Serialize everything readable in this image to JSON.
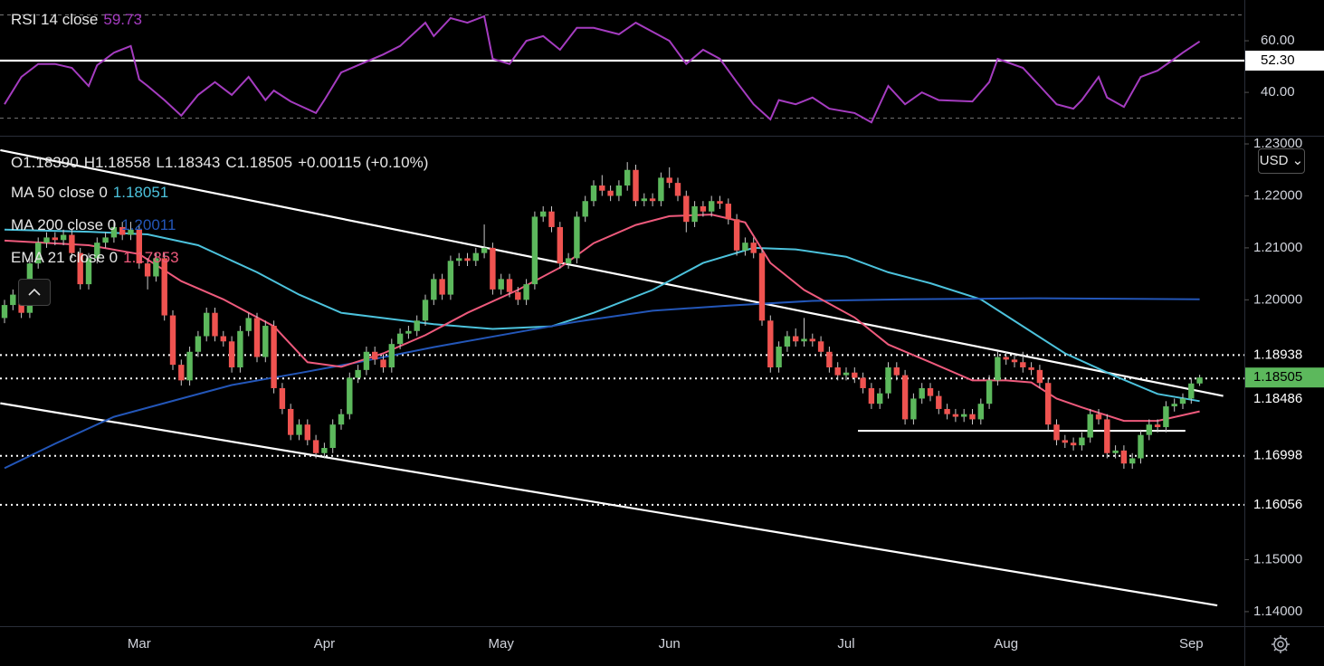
{
  "chart_data": [
    {
      "type": "candlestick",
      "header": {
        "ohlc": [
          "O1.18390",
          "H1.18558",
          "L1.18343",
          "C1.18505"
        ],
        "change": "+0.00115 (+0.10%)"
      },
      "currency": "USD",
      "categories": [
        null,
        null,
        null,
        null,
        null,
        null,
        null,
        null,
        null,
        null,
        null,
        null,
        null,
        null,
        null,
        null,
        "Mar",
        null,
        null,
        null,
        null,
        null,
        null,
        null,
        null,
        null,
        null,
        null,
        null,
        null,
        null,
        null,
        null,
        null,
        null,
        null,
        null,
        null,
        "Apr",
        null,
        null,
        null,
        null,
        null,
        null,
        null,
        null,
        null,
        null,
        null,
        null,
        null,
        null,
        null,
        null,
        null,
        null,
        null,
        null,
        "May",
        null,
        null,
        null,
        null,
        null,
        null,
        null,
        null,
        null,
        null,
        null,
        null,
        null,
        null,
        null,
        null,
        null,
        null,
        null,
        "Jun",
        null,
        null,
        null,
        null,
        null,
        null,
        null,
        null,
        null,
        null,
        null,
        null,
        null,
        null,
        null,
        null,
        null,
        null,
        null,
        null,
        "Jul",
        null,
        null,
        null,
        null,
        null,
        null,
        null,
        null,
        null,
        null,
        null,
        null,
        null,
        null,
        null,
        null,
        null,
        null,
        "Aug",
        null,
        null,
        null,
        null,
        null,
        null,
        null,
        null,
        null,
        null,
        null,
        null,
        null,
        null,
        null,
        null,
        null,
        null,
        null,
        null,
        null,
        "Sep",
        null
      ],
      "open": [
        1.1965,
        1.199,
        1.201,
        1.1975,
        1.207,
        1.211,
        1.212,
        1.2115,
        1.2125,
        1.209,
        1.203,
        1.208,
        1.211,
        1.212,
        1.214,
        1.2125,
        1.2135,
        1.207,
        1.2045,
        1.208,
        1.197,
        1.1875,
        1.1845,
        1.19,
        1.193,
        1.1975,
        1.193,
        1.192,
        1.187,
        1.194,
        1.1965,
        1.189,
        1.195,
        1.183,
        1.179,
        1.174,
        1.176,
        1.173,
        1.1705,
        1.1715,
        1.176,
        1.178,
        1.185,
        1.1865,
        1.19,
        1.1885,
        1.187,
        1.1915,
        1.1935,
        1.194,
        1.196,
        1.2,
        1.204,
        1.201,
        1.2075,
        1.208,
        1.2075,
        1.209,
        1.21,
        1.202,
        1.204,
        1.2015,
        1.2,
        1.203,
        1.216,
        1.217,
        1.214,
        1.207,
        1.208,
        1.216,
        1.219,
        1.222,
        1.221,
        1.22,
        1.222,
        1.225,
        1.219,
        1.2195,
        1.219,
        1.2235,
        1.2225,
        1.22,
        1.215,
        1.218,
        1.217,
        1.219,
        1.2185,
        1.2155,
        1.2095,
        1.211,
        1.209,
        1.196,
        1.187,
        1.191,
        1.193,
        1.192,
        1.1925,
        1.192,
        1.19,
        1.187,
        1.1855,
        1.186,
        1.185,
        1.183,
        1.18,
        1.182,
        1.187,
        1.1855,
        1.177,
        1.181,
        1.183,
        1.1815,
        1.179,
        1.178,
        1.1775,
        1.178,
        1.177,
        1.18,
        1.1845,
        1.189,
        1.1885,
        1.188,
        1.187,
        1.1865,
        1.184,
        1.176,
        1.173,
        1.1725,
        1.172,
        1.1735,
        1.178,
        1.177,
        1.1705,
        1.171,
        1.1685,
        1.1695,
        1.174,
        1.176,
        1.1755,
        1.1795,
        1.18,
        1.181,
        1.1839
      ],
      "high": [
        1.2,
        1.202,
        1.202,
        1.208,
        1.212,
        1.213,
        1.213,
        1.2135,
        1.2135,
        1.21,
        1.209,
        1.212,
        1.213,
        1.215,
        1.215,
        1.215,
        1.2145,
        1.208,
        1.209,
        1.209,
        1.198,
        1.1885,
        1.191,
        1.194,
        1.1985,
        1.1985,
        1.194,
        1.193,
        1.195,
        1.1975,
        1.1975,
        1.196,
        1.196,
        1.184,
        1.18,
        1.177,
        1.177,
        1.174,
        1.1725,
        1.177,
        1.179,
        1.186,
        1.1875,
        1.191,
        1.191,
        1.1895,
        1.1925,
        1.1945,
        1.195,
        1.197,
        1.201,
        1.205,
        1.205,
        1.2085,
        1.209,
        1.209,
        1.21,
        1.2145,
        1.211,
        1.205,
        1.205,
        1.2025,
        1.204,
        1.217,
        1.218,
        1.218,
        1.215,
        1.209,
        1.217,
        1.22,
        1.223,
        1.224,
        1.222,
        1.223,
        1.2265,
        1.226,
        1.2205,
        1.2205,
        1.2245,
        1.2255,
        1.2235,
        1.221,
        1.219,
        1.219,
        1.22,
        1.22,
        1.2195,
        1.2165,
        1.212,
        1.212,
        1.21,
        1.197,
        1.192,
        1.194,
        1.1945,
        1.1965,
        1.1935,
        1.193,
        1.191,
        1.188,
        1.187,
        1.187,
        1.186,
        1.184,
        1.183,
        1.188,
        1.188,
        1.1865,
        1.182,
        1.184,
        1.184,
        1.1825,
        1.18,
        1.179,
        1.179,
        1.179,
        1.181,
        1.1855,
        1.19,
        1.19,
        1.1895,
        1.19,
        1.188,
        1.1875,
        1.185,
        1.177,
        1.174,
        1.1735,
        1.1745,
        1.179,
        1.179,
        1.178,
        1.172,
        1.172,
        1.1705,
        1.175,
        1.177,
        1.177,
        1.1805,
        1.181,
        1.182,
        1.185,
        1.18558
      ],
      "low": [
        1.1955,
        1.198,
        1.1965,
        1.1965,
        1.206,
        1.21,
        1.2105,
        1.2105,
        1.208,
        1.202,
        1.202,
        1.207,
        1.21,
        1.211,
        1.2115,
        1.2115,
        1.206,
        1.202,
        1.2035,
        1.196,
        1.1865,
        1.1835,
        1.1835,
        1.189,
        1.192,
        1.192,
        1.191,
        1.186,
        1.186,
        1.193,
        1.188,
        1.188,
        1.182,
        1.178,
        1.173,
        1.173,
        1.172,
        1.1695,
        1.1695,
        1.1705,
        1.175,
        1.177,
        1.184,
        1.1855,
        1.1875,
        1.186,
        1.186,
        1.1905,
        1.1925,
        1.193,
        1.195,
        1.199,
        1.2,
        1.2,
        1.2065,
        1.2065,
        1.2065,
        1.208,
        1.201,
        1.201,
        1.2005,
        1.199,
        1.199,
        1.202,
        1.215,
        1.213,
        1.206,
        1.206,
        1.207,
        1.215,
        1.218,
        1.22,
        1.219,
        1.219,
        1.221,
        1.218,
        1.218,
        1.218,
        1.218,
        1.2215,
        1.219,
        1.213,
        1.214,
        1.216,
        1.216,
        1.2175,
        1.2145,
        1.2085,
        1.2085,
        1.208,
        1.195,
        1.186,
        1.186,
        1.19,
        1.191,
        1.191,
        1.191,
        1.189,
        1.186,
        1.1845,
        1.1845,
        1.184,
        1.182,
        1.179,
        1.179,
        1.181,
        1.1845,
        1.176,
        1.176,
        1.18,
        1.1805,
        1.178,
        1.177,
        1.1765,
        1.1765,
        1.176,
        1.176,
        1.179,
        1.1835,
        1.1875,
        1.187,
        1.186,
        1.1855,
        1.183,
        1.175,
        1.172,
        1.1715,
        1.171,
        1.171,
        1.1725,
        1.176,
        1.1695,
        1.1695,
        1.1675,
        1.1675,
        1.1685,
        1.173,
        1.1745,
        1.1745,
        1.1785,
        1.179,
        1.18,
        1.18343
      ],
      "close": [
        1.199,
        1.201,
        1.1975,
        1.207,
        1.211,
        1.212,
        1.2115,
        1.2125,
        1.209,
        1.203,
        1.208,
        1.211,
        1.212,
        1.214,
        1.2125,
        1.2135,
        1.207,
        1.2045,
        1.208,
        1.197,
        1.1875,
        1.1845,
        1.19,
        1.193,
        1.1975,
        1.193,
        1.192,
        1.187,
        1.194,
        1.1965,
        1.189,
        1.195,
        1.183,
        1.179,
        1.174,
        1.176,
        1.173,
        1.1705,
        1.1715,
        1.176,
        1.178,
        1.185,
        1.1865,
        1.19,
        1.1885,
        1.187,
        1.1915,
        1.1935,
        1.194,
        1.196,
        1.2,
        1.204,
        1.201,
        1.2075,
        1.208,
        1.2075,
        1.209,
        1.21,
        1.202,
        1.204,
        1.2015,
        1.2,
        1.203,
        1.216,
        1.217,
        1.214,
        1.207,
        1.208,
        1.216,
        1.219,
        1.222,
        1.221,
        1.22,
        1.222,
        1.225,
        1.219,
        1.2195,
        1.219,
        1.2235,
        1.2225,
        1.22,
        1.215,
        1.218,
        1.217,
        1.219,
        1.2185,
        1.2155,
        1.2095,
        1.211,
        1.209,
        1.196,
        1.187,
        1.191,
        1.193,
        1.192,
        1.1925,
        1.192,
        1.19,
        1.187,
        1.1855,
        1.186,
        1.185,
        1.183,
        1.18,
        1.182,
        1.187,
        1.1855,
        1.177,
        1.181,
        1.183,
        1.1815,
        1.179,
        1.178,
        1.1775,
        1.178,
        1.177,
        1.18,
        1.1845,
        1.189,
        1.1885,
        1.188,
        1.187,
        1.1865,
        1.184,
        1.176,
        1.173,
        1.1725,
        1.172,
        1.1735,
        1.178,
        1.177,
        1.1705,
        1.171,
        1.1685,
        1.1695,
        1.174,
        1.176,
        1.1755,
        1.1795,
        1.18,
        1.181,
        1.1839,
        1.18505
      ],
      "up_color": "#5cb85c",
      "down_color": "#ef5350",
      "wick_color": "#c8c8c8",
      "overlays": [
        {
          "name": "MA 50 close 0",
          "legend_value": "1.18051",
          "color": "#4cc2dc",
          "x": [
            0,
            10,
            17,
            23,
            30,
            35,
            40,
            46,
            51,
            58,
            65,
            70,
            77,
            83,
            89,
            94,
            100,
            105,
            110,
            116,
            121,
            126,
            132,
            137,
            142
          ],
          "values": [
            1.2135,
            1.2131,
            1.2126,
            1.2105,
            1.2053,
            1.201,
            1.1975,
            1.1963,
            1.1953,
            1.1944,
            1.1949,
            1.1975,
            1.2019,
            1.2071,
            1.21,
            1.2097,
            1.2083,
            1.2053,
            1.2032,
            1.2001,
            1.1949,
            1.1897,
            1.1853,
            1.1819,
            1.18051
          ]
        },
        {
          "name": "MA 200 close 0",
          "legend_value": "1.20011",
          "color": "#2356b8",
          "x": [
            0,
            6,
            13,
            21,
            27,
            35,
            42,
            51,
            60,
            68,
            77,
            86,
            96,
            107,
            123,
            142
          ],
          "values": [
            1.1676,
            1.1723,
            1.1775,
            1.181,
            1.1836,
            1.1859,
            1.188,
            1.1909,
            1.1935,
            1.1958,
            1.1979,
            1.1989,
            1.1998,
            1.2001,
            1.2003,
            1.20011
          ]
        },
        {
          "name": "EMA 21 close 0",
          "legend_value": "1.17853",
          "color": "#ee5a7c",
          "x": [
            0,
            10,
            16,
            21,
            26,
            32,
            36,
            40,
            45,
            50,
            55,
            61,
            66,
            70,
            75,
            79,
            84,
            88,
            91,
            95,
            101,
            105,
            110,
            115,
            119,
            122,
            125,
            128,
            133,
            137,
            142
          ],
          "values": [
            1.2114,
            1.2105,
            1.2088,
            1.2036,
            1.2001,
            1.1949,
            1.188,
            1.1871,
            1.1897,
            1.1932,
            1.1975,
            1.2019,
            1.2062,
            1.2109,
            1.2144,
            1.2161,
            1.2164,
            1.2149,
            1.2071,
            1.2019,
            1.1966,
            1.1914,
            1.188,
            1.1845,
            1.1845,
            1.1841,
            1.181,
            1.1793,
            1.1767,
            1.1767,
            1.17853
          ]
        }
      ],
      "levels": [
        1.18938,
        1.18486,
        1.16998,
        1.16056
      ],
      "trendlines": [
        {
          "x": [
            -0.5,
            144.8
          ],
          "values": [
            1.2288,
            1.1815
          ]
        },
        {
          "x": [
            -0.5,
            144.1
          ],
          "values": [
            1.1801,
            1.1412
          ]
        },
        {
          "x": [
            101.4,
            140.3
          ],
          "values": [
            1.1748,
            1.1748
          ]
        }
      ],
      "ylim": [
        1.1372,
        1.2314
      ],
      "yticks": [
        {
          "value": 1.23,
          "label": "1.23000"
        },
        {
          "value": 1.22,
          "label": "1.22000"
        },
        {
          "value": 1.21,
          "label": "1.21000"
        },
        {
          "value": 1.2,
          "label": "1.20000"
        },
        {
          "value": 1.15,
          "label": "1.15000"
        },
        {
          "value": 1.14,
          "label": "1.14000"
        }
      ]
    },
    {
      "type": "line",
      "title": "RSI 14 close",
      "legend_value": "59.73",
      "color": "#a53cc0",
      "x": [
        0,
        2,
        4,
        6,
        8,
        10,
        11,
        13,
        15,
        16,
        17,
        19,
        21,
        23,
        25,
        27,
        29,
        31,
        32,
        34,
        37,
        38,
        40,
        42,
        45,
        47,
        50,
        51,
        53,
        55,
        57,
        58,
        60,
        62,
        64,
        66,
        68,
        70,
        73,
        75,
        77,
        79,
        81,
        83,
        85,
        87,
        89,
        91,
        92,
        94,
        96,
        98,
        101,
        103,
        105,
        107,
        109,
        111,
        115,
        117,
        118,
        121,
        123,
        125,
        127,
        128,
        130,
        131,
        133,
        135,
        137,
        139,
        140,
        142
      ],
      "values": [
        35.4,
        46,
        51,
        51,
        49.5,
        42.5,
        50.5,
        55.4,
        58,
        45,
        42.5,
        37,
        31,
        39,
        44,
        39,
        46,
        37,
        40.7,
        36.5,
        32,
        37,
        47.7,
        50.5,
        54.7,
        58,
        67,
        61.8,
        68.8,
        67,
        69.5,
        53,
        51,
        60,
        61.8,
        56.5,
        65,
        65,
        62.5,
        67,
        63.5,
        60,
        51,
        56.5,
        53,
        44,
        35.4,
        29.5,
        37,
        35.4,
        38,
        33.7,
        32,
        28.4,
        42.5,
        35.4,
        40,
        37,
        36.5,
        44,
        53,
        49.5,
        42.5,
        35.4,
        33.7,
        37,
        46,
        38,
        34.4,
        46,
        48.4,
        53,
        55.4,
        59.73
      ],
      "bands": [
        70,
        30
      ],
      "level": {
        "value": 52.3,
        "label": "52.30"
      },
      "ylim": [
        23.2,
        75.8
      ],
      "yticks": [
        {
          "value": 60,
          "label": "60.00"
        },
        {
          "value": 40,
          "label": "40.00"
        }
      ]
    }
  ]
}
